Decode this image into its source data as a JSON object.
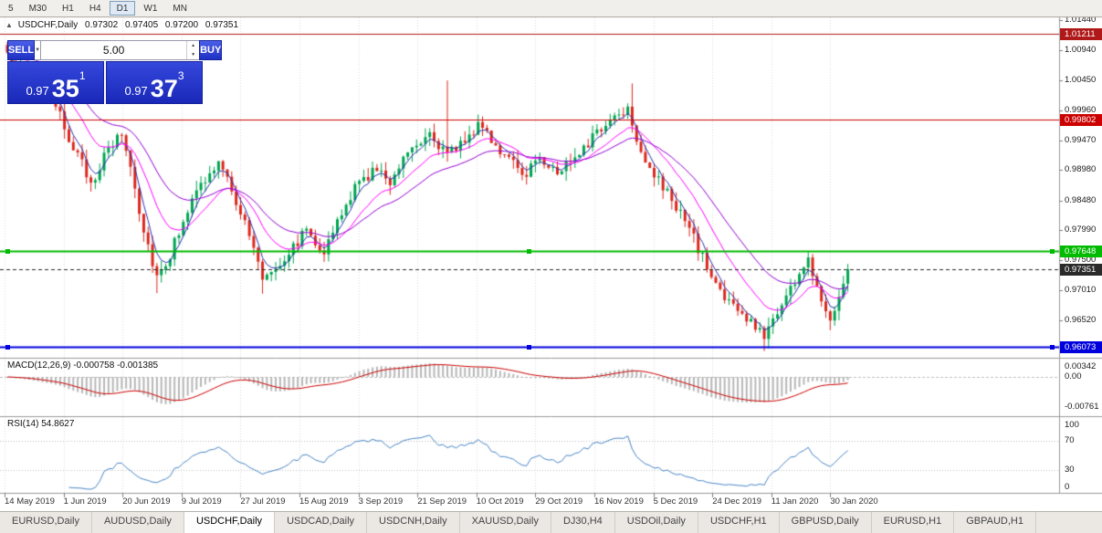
{
  "toolbar": {
    "timeframes": [
      "5",
      "M30",
      "H1",
      "H4",
      "D1",
      "W1",
      "MN"
    ],
    "active_timeframe": "D1"
  },
  "chart": {
    "symbol": "USDCHF,Daily",
    "ohlc": {
      "open": "0.97302",
      "high": "0.97405",
      "low": "0.97200",
      "close": "0.97351"
    }
  },
  "trade_panel": {
    "sell_label": "SELL",
    "buy_label": "BUY",
    "volume": "5.00",
    "sell_price": {
      "small": "0.97",
      "big": "35",
      "sup": "1"
    },
    "buy_price": {
      "small": "0.97",
      "big": "37",
      "sup": "3"
    }
  },
  "icons": {
    "panel_toggle": "▲",
    "caret_down": "▼",
    "spin_up": "▲",
    "spin_down": "▼"
  },
  "price_axis": {
    "ticks": [
      "1.01440",
      "1.00940",
      "1.00450",
      "0.99960",
      "0.99470",
      "0.98980",
      "0.98480",
      "0.97990",
      "0.97500",
      "0.97010",
      "0.96520"
    ]
  },
  "levels": [
    {
      "label": "1.01211",
      "price": 1.01211,
      "color": "#b01919",
      "width": 1,
      "dashed": false,
      "handles": false,
      "name": "resistance-line-upper"
    },
    {
      "label": "0.99802",
      "price": 0.99802,
      "color": "#cc0000",
      "width": 1,
      "dashed": false,
      "handles": false,
      "name": "resistance-line-lower"
    },
    {
      "label": "0.97648",
      "price": 0.97648,
      "color": "#00bb00",
      "width": 2,
      "dashed": false,
      "handles": true,
      "name": "support-line-green"
    },
    {
      "label": "0.97351",
      "price": 0.97351,
      "color": "#2a2a2a",
      "width": 1,
      "dashed": true,
      "handles": false,
      "name": "current-price-line"
    },
    {
      "label": "0.96073",
      "price": 0.96073,
      "color": "#0000dd",
      "width": 2,
      "dashed": false,
      "handles": true,
      "name": "support-line-blue"
    }
  ],
  "indicators": {
    "macd": {
      "label": "MACD(12,26,9) -0.000758 -0.001385",
      "axis": [
        "0.00342",
        "0.00",
        "-0.00761"
      ]
    },
    "rsi": {
      "label": "RSI(14) 54.8627",
      "axis": [
        "100",
        "70",
        "30",
        "0"
      ]
    }
  },
  "date_axis": [
    "14 May 2019",
    "1 Jun 2019",
    "20 Jun 2019",
    "9 Jul 2019",
    "27 Jul 2019",
    "15 Aug 2019",
    "3 Sep 2019",
    "21 Sep 2019",
    "10 Oct 2019",
    "29 Oct 2019",
    "16 Nov 2019",
    "5 Dec 2019",
    "24 Dec 2019",
    "11 Jan 2020",
    "30 Jan 2020"
  ],
  "tabs": {
    "items": [
      "EURUSD,Daily",
      "AUDUSD,Daily",
      "USDCHF,Daily",
      "USDCAD,Daily",
      "USDCNH,Daily",
      "XAUUSD,Daily",
      "DJ30,H4",
      "USDOil,Daily",
      "USDCHF,H1",
      "GBPUSD,Daily",
      "EURUSD,H1",
      "GBPAUD,H1"
    ],
    "active": "USDCHF,Daily"
  },
  "colors": {
    "bull": "#00a651",
    "bear": "#dc281e",
    "ma_fast": "#2b32b2",
    "ma_mid": "#ff00ff",
    "ma_slow": "#9400d3",
    "macd_histogram": "#b8b8b8",
    "macd_signal": "#cc0000",
    "rsi_line": "#4a86c8",
    "grid": "#dcdcdc",
    "panel_accent": "#2438d2"
  },
  "chart_data": {
    "type": "candlestick",
    "symbol": "USDCHF",
    "timeframe": "D1",
    "title": "USDCHF,Daily",
    "y_range": [
      0.959,
      1.015
    ],
    "price_axis_ticks": [
      1.0144,
      1.0094,
      1.0045,
      0.9996,
      0.9947,
      0.9898,
      0.9848,
      0.9799,
      0.975,
      0.9701,
      0.9652
    ],
    "n_candles": 192,
    "current_bid": 0.97351,
    "current_ask": 0.97373,
    "noise": 0.001,
    "wick": 0.0016,
    "keypoints": [
      [
        0,
        1.0082
      ],
      [
        4,
        1.006
      ],
      [
        8,
        1.0035
      ],
      [
        12,
        0.9985
      ],
      [
        16,
        0.992
      ],
      [
        19,
        0.9878
      ],
      [
        23,
        0.993
      ],
      [
        26,
        0.9958
      ],
      [
        28,
        0.9905
      ],
      [
        31,
        0.98
      ],
      [
        34,
        0.9725
      ],
      [
        37,
        0.9758
      ],
      [
        40,
        0.982
      ],
      [
        44,
        0.9872
      ],
      [
        48,
        0.9908
      ],
      [
        51,
        0.9868
      ],
      [
        55,
        0.979
      ],
      [
        58,
        0.9722
      ],
      [
        62,
        0.9748
      ],
      [
        65,
        0.9772
      ],
      [
        68,
        0.9802
      ],
      [
        72,
        0.9765
      ],
      [
        76,
        0.9825
      ],
      [
        79,
        0.9868
      ],
      [
        83,
        0.9898
      ],
      [
        87,
        0.9882
      ],
      [
        91,
        0.9932
      ],
      [
        96,
        0.9962
      ],
      [
        100,
        0.992
      ],
      [
        104,
        0.9952
      ],
      [
        108,
        0.9972
      ],
      [
        112,
        0.993
      ],
      [
        117,
        0.9888
      ],
      [
        121,
        0.9922
      ],
      [
        125,
        0.9892
      ],
      [
        130,
        0.9932
      ],
      [
        134,
        0.9958
      ],
      [
        138,
        0.9988
      ],
      [
        141,
        1.0002
      ],
      [
        144,
        0.993
      ],
      [
        148,
        0.9878
      ],
      [
        152,
        0.984
      ],
      [
        156,
        0.9786
      ],
      [
        160,
        0.9722
      ],
      [
        164,
        0.9682
      ],
      [
        168,
        0.9652
      ],
      [
        172,
        0.9628
      ],
      [
        176,
        0.968
      ],
      [
        180,
        0.9728
      ],
      [
        182,
        0.9748
      ],
      [
        185,
        0.9692
      ],
      [
        187,
        0.9652
      ],
      [
        189,
        0.9698
      ],
      [
        191,
        0.97351
      ]
    ],
    "wick_highs": [
      [
        100,
        1.0045
      ],
      [
        142,
        1.004
      ]
    ],
    "wick_lows": [
      [
        34,
        0.9696
      ],
      [
        58,
        0.9695
      ],
      [
        172,
        0.9601
      ]
    ],
    "ma_periods": [
      {
        "period": 4,
        "color_key": "ma_fast"
      },
      {
        "period": 13,
        "color_key": "ma_mid"
      },
      {
        "period": 26,
        "color_key": "ma_slow"
      }
    ],
    "macd_params": [
      12,
      26,
      9
    ],
    "macd_values": {
      "macd": -0.000758,
      "signal": -0.001385
    },
    "rsi_period": 14,
    "rsi_value": 54.8627,
    "horizontal_lines": [
      1.01211,
      0.99802,
      0.97648,
      0.96073
    ]
  }
}
